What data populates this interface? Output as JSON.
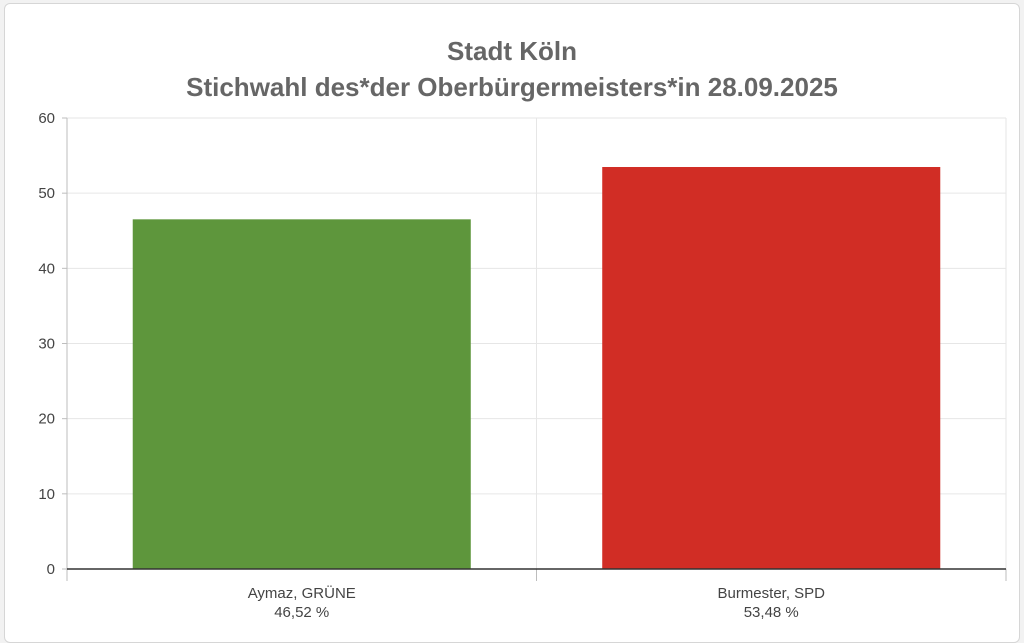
{
  "chart_data": {
    "type": "bar",
    "title": "Stadt Köln",
    "subtitle": "Stichwahl des*der Oberbürgermeisters*in 28.09.2025",
    "categories": [
      "Aymaz, GRÜNE",
      "Burmester, SPD"
    ],
    "values": [
      46.52,
      53.48
    ],
    "value_labels": [
      "46,52 %",
      "53,48 %"
    ],
    "colors": [
      "#5e963c",
      "#d12d25"
    ],
    "ylim": [
      0,
      60
    ],
    "yticks": [
      "0",
      "10",
      "20",
      "30",
      "40",
      "50",
      "60"
    ],
    "grid": true,
    "legend": "none"
  }
}
